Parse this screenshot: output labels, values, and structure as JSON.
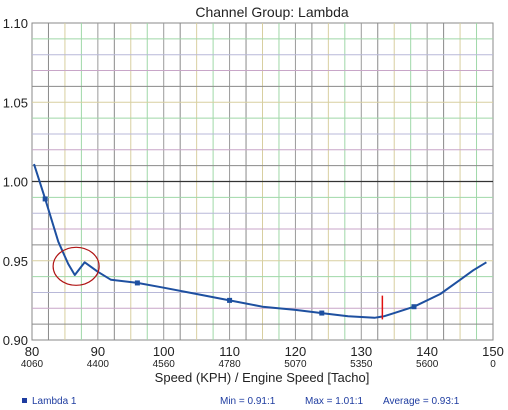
{
  "chart_data": {
    "type": "line",
    "title": "Channel Group: Lambda",
    "xlabel": "Speed (KPH) / Engine Speed [Tacho]",
    "ylabel": "",
    "xlim": [
      80,
      150
    ],
    "ylim": [
      0.9,
      1.1
    ],
    "y_ticks": [
      "0.90",
      "0.95",
      "1.00",
      "1.05",
      "1.10"
    ],
    "x_ticks": [
      {
        "value": 80,
        "label": "80",
        "rpm": "4060"
      },
      {
        "value": 90,
        "label": "90",
        "rpm": "4400"
      },
      {
        "value": 100,
        "label": "100",
        "rpm": "4560"
      },
      {
        "value": 110,
        "label": "110",
        "rpm": "4780"
      },
      {
        "value": 120,
        "label": "120",
        "rpm": "5070"
      },
      {
        "value": 130,
        "label": "130",
        "rpm": "5350"
      },
      {
        "value": 140,
        "label": "140",
        "rpm": "5600"
      },
      {
        "value": 150,
        "label": "150",
        "rpm": "0"
      }
    ],
    "grid": true,
    "reference_line": 1.0,
    "series": [
      {
        "name": "Lambda 1",
        "color": "#1e50a0",
        "x": [
          80.3,
          82,
          84,
          85.5,
          86.5,
          88,
          90,
          92,
          96,
          100,
          105,
          110,
          115,
          120,
          124,
          128,
          132,
          133.5,
          135,
          138,
          142,
          145,
          147,
          149
        ],
        "y": [
          1.011,
          0.989,
          0.962,
          0.948,
          0.941,
          0.949,
          0.943,
          0.938,
          0.936,
          0.933,
          0.929,
          0.925,
          0.921,
          0.919,
          0.917,
          0.915,
          0.914,
          0.915,
          0.917,
          0.921,
          0.929,
          0.938,
          0.944,
          0.949
        ],
        "markers_x": [
          82,
          96,
          110,
          124,
          138
        ]
      }
    ],
    "annotations": {
      "circle": {
        "x": 86.7,
        "y": 0.9465
      },
      "red_marker_x": 133.2,
      "red_marker_y": [
        0.913,
        0.928
      ]
    }
  },
  "legend": {
    "series_name": "Lambda 1",
    "min": "Min = 0.91:1",
    "max": "Max = 1.01:1",
    "average": "Average = 0.93:1"
  }
}
